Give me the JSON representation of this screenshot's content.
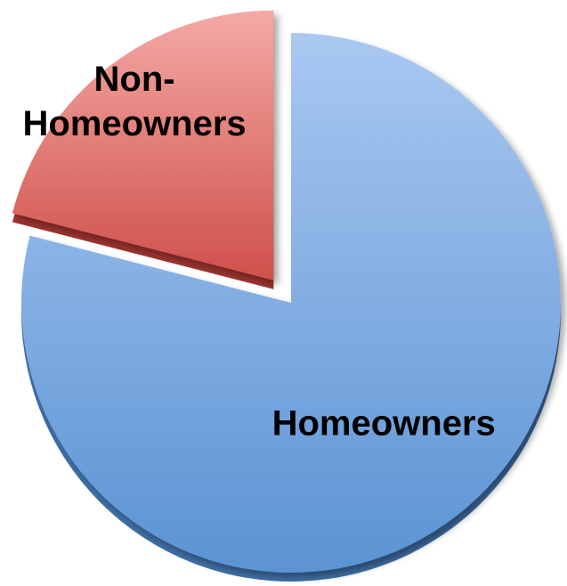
{
  "chart_data": {
    "type": "pie",
    "exploded": true,
    "slices": [
      {
        "label": "Homeowners",
        "label_lines": [
          "Homeowners"
        ],
        "value": 79,
        "color_top": "#a9c8f1",
        "color_bottom": "#5b93d3",
        "edge": "#3f6fa6"
      },
      {
        "label": "Non-Homeowners",
        "label_lines": [
          "Non-",
          "Homeowners"
        ],
        "value": 21,
        "color_top": "#f4a9a5",
        "color_bottom": "#cf504a",
        "edge": "#9e3430"
      }
    ]
  }
}
